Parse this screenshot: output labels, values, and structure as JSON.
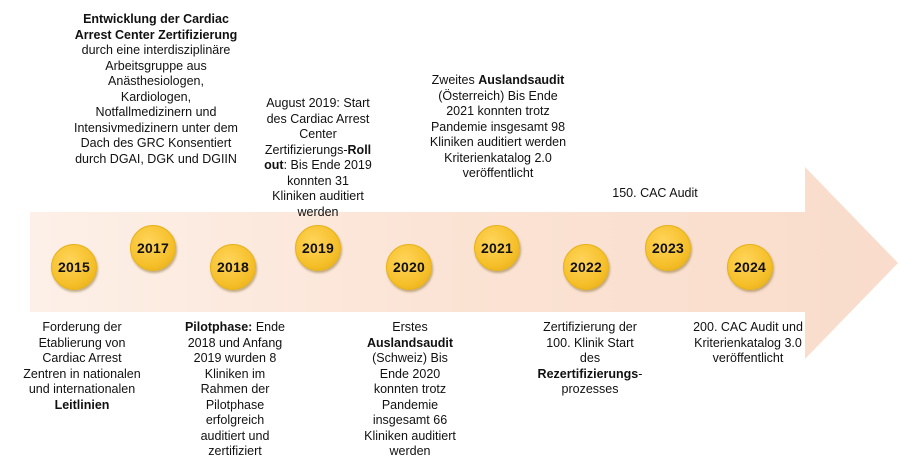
{
  "timeline": {
    "accent_color": "#f6c02b",
    "arrow_color": "#fbe3d4",
    "years": [
      "2015",
      "2017",
      "2018",
      "2019",
      "2020",
      "2021",
      "2022",
      "2023",
      "2024"
    ],
    "events": {
      "e2015": {
        "t1": "Forderung der Etablierung von Cardiac Arrest Zentren in nationalen und internationalen ",
        "t2": "Leitlinien"
      },
      "e2017": {
        "t1": "Entwicklung der Cardiac Arrest Center Zertifizierung",
        "t2": " durch eine interdisziplinäre Arbeitsgruppe aus Anästhesiologen, Kardiologen, Notfallmedizinern und Intensivmedizinern unter dem Dach des GRC Konsentiert durch DGAI, DGK und DGIIN"
      },
      "e2018": {
        "t1": "Pilotphase:",
        "t2": " Ende 2018 und Anfang 2019 wurden 8 Kliniken im Rahmen der Pilotphase erfolgreich auditiert und zertifiziert"
      },
      "e2019": {
        "t1": "August 2019: Start des Cardiac Arrest Center Zertifizierungs-",
        "t2": "Roll out",
        "t3": ": Bis Ende 2019 konnten 31 Kliniken auditiert werden"
      },
      "e2020": {
        "t1": "Erstes ",
        "t2": "Auslandsaudit",
        "t3": " (Schweiz) Bis Ende 2020 konnten trotz Pandemie insgesamt 66 Kliniken auditiert werden"
      },
      "e2021": {
        "t1": "Zweites ",
        "t2": "Auslandsaudit",
        "t3": " (Österreich) Bis Ende 2021 konnten trotz Pandemie insgesamt 98 Kliniken auditiert werden Kriterienkatalog 2.0 veröffentlicht"
      },
      "e2022": {
        "t1": "Zertifizierung der 100. Klinik Start des ",
        "t2": "Rezertifizierungs",
        "t3": "-prozesses"
      },
      "e2023": {
        "t1": "150. CAC Audit"
      },
      "e2024": {
        "t1": "200. CAC Audit und Kriterienkatalog 3.0 veröffentlicht"
      }
    }
  }
}
